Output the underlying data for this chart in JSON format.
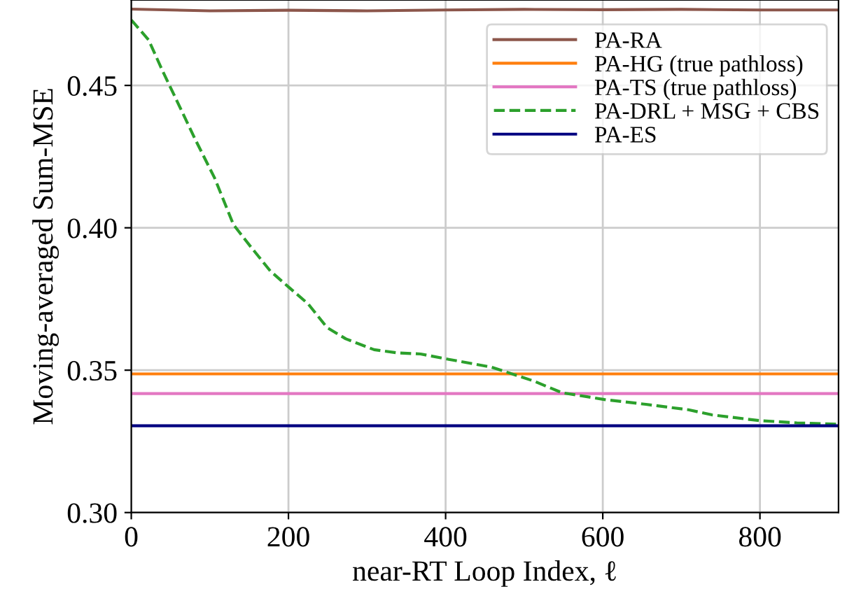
{
  "chart_data": {
    "type": "line",
    "xlabel": "near-RT Loop Index, ℓ",
    "ylabel": "Moving-averaged Sum-MSE",
    "xlim": [
      0,
      900
    ],
    "ylim": [
      0.3,
      0.48
    ],
    "xticks": [
      0,
      200,
      400,
      600,
      800
    ],
    "yticks": [
      {
        "value": 0.3,
        "label": "0.30"
      },
      0.35,
      {
        "value": 0.4,
        "label": "0.40"
      },
      0.45
    ],
    "grid": true,
    "legend": "top right",
    "marker": "none",
    "series": [
      {
        "name": "PA-RA",
        "color": "#8c564b",
        "line_style": "solid",
        "x": [
          0,
          100,
          200,
          300,
          400,
          500,
          600,
          700,
          800,
          900
        ],
        "values": [
          0.4768,
          0.4762,
          0.4764,
          0.4762,
          0.4765,
          0.4767,
          0.4766,
          0.4767,
          0.4765,
          0.4765
        ]
      },
      {
        "name": "PA-HG (true pathloss)",
        "color": "#ff7f0e",
        "line_style": "solid",
        "x": [
          0,
          900
        ],
        "values": [
          0.3487,
          0.3487
        ]
      },
      {
        "name": "PA-TS (true pathloss)",
        "color": "#e377c2",
        "line_style": "solid",
        "x": [
          0,
          900
        ],
        "values": [
          0.3418,
          0.3418
        ]
      },
      {
        "name": "PA-DRL + MSG + CBS",
        "color": "#2ca02c",
        "line_style": "dashed",
        "x": [
          0,
          22,
          40,
          58,
          82,
          106,
          130,
          153,
          177,
          201,
          225,
          249,
          273,
          309,
          338,
          368,
          404,
          458,
          512,
          548,
          602,
          655,
          709,
          739,
          799,
          847,
          900
        ],
        "values": [
          0.473,
          0.466,
          0.455,
          0.4446,
          0.4307,
          0.4175,
          0.4011,
          0.393,
          0.3848,
          0.379,
          0.3733,
          0.365,
          0.361,
          0.3572,
          0.3561,
          0.3557,
          0.3538,
          0.3511,
          0.3462,
          0.3421,
          0.3397,
          0.338,
          0.3361,
          0.3343,
          0.3323,
          0.3315,
          0.331
        ]
      },
      {
        "name": "PA-ES",
        "color": "#000080",
        "line_style": "solid",
        "x": [
          0,
          900
        ],
        "values": [
          0.3305,
          0.3305
        ]
      }
    ]
  }
}
